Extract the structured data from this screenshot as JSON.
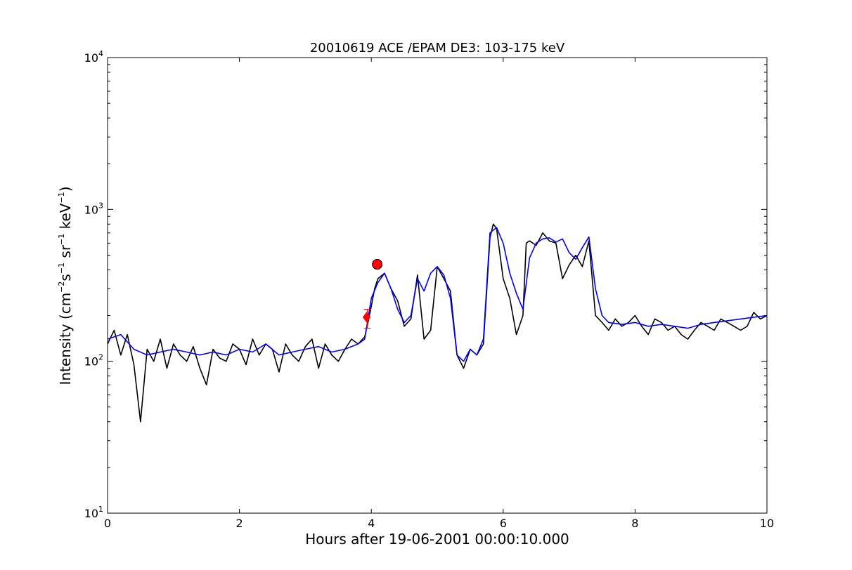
{
  "chart_data": {
    "type": "line",
    "title": "20010619 ACE /EPAM DE3: 103-175 keV",
    "xlabel": "Hours after 19-06-2001 00:00:10.000",
    "ylabel": {
      "prefix": "Intensity (cm",
      "sup1": "−2",
      "s": "s",
      "sup2": "−1",
      "sr": " sr",
      "sup3": "−1",
      "kev": " keV",
      "sup4": "−1",
      "suffix": ")"
    },
    "xlim": [
      0,
      10
    ],
    "ylim": [
      10,
      10000
    ],
    "yscale": "log",
    "x_ticks": [
      {
        "value": 0,
        "label": "0"
      },
      {
        "value": 2,
        "label": "2"
      },
      {
        "value": 4,
        "label": "4"
      },
      {
        "value": 6,
        "label": "6"
      },
      {
        "value": 8,
        "label": "8"
      },
      {
        "value": 10,
        "label": "10"
      }
    ],
    "y_ticks": [
      {
        "value": 10,
        "base": "10",
        "exp": "1"
      },
      {
        "value": 100,
        "base": "10",
        "exp": "2"
      },
      {
        "value": 1000,
        "base": "10",
        "exp": "3"
      },
      {
        "value": 10000,
        "base": "10",
        "exp": "4"
      }
    ],
    "grid": false,
    "series": [
      {
        "color": "#000000",
        "x": [
          0.0,
          0.1,
          0.2,
          0.3,
          0.4,
          0.5,
          0.6,
          0.7,
          0.8,
          0.9,
          1.0,
          1.1,
          1.2,
          1.3,
          1.4,
          1.5,
          1.6,
          1.7,
          1.8,
          1.9,
          2.0,
          2.1,
          2.2,
          2.3,
          2.4,
          2.5,
          2.6,
          2.7,
          2.8,
          2.9,
          3.0,
          3.1,
          3.2,
          3.3,
          3.4,
          3.5,
          3.6,
          3.7,
          3.8,
          3.9,
          3.95,
          4.0,
          4.05,
          4.1,
          4.2,
          4.3,
          4.4,
          4.5,
          4.6,
          4.7,
          4.8,
          4.9,
          5.0,
          5.1,
          5.2,
          5.3,
          5.4,
          5.5,
          5.6,
          5.7,
          5.8,
          5.85,
          5.9,
          6.0,
          6.1,
          6.2,
          6.3,
          6.35,
          6.4,
          6.5,
          6.6,
          6.7,
          6.8,
          6.9,
          7.0,
          7.1,
          7.2,
          7.3,
          7.4,
          7.5,
          7.6,
          7.7,
          7.8,
          7.9,
          8.0,
          8.1,
          8.2,
          8.3,
          8.4,
          8.5,
          8.6,
          8.7,
          8.8,
          8.9,
          9.0,
          9.1,
          9.2,
          9.3,
          9.4,
          9.5,
          9.6,
          9.7,
          9.8,
          9.9,
          10.0
        ],
        "y": [
          130,
          160,
          110,
          150,
          95,
          40,
          120,
          100,
          140,
          90,
          130,
          110,
          100,
          125,
          90,
          70,
          120,
          105,
          100,
          130,
          120,
          95,
          140,
          110,
          130,
          120,
          85,
          130,
          110,
          100,
          125,
          140,
          90,
          130,
          110,
          100,
          120,
          140,
          130,
          145,
          180,
          230,
          300,
          350,
          380,
          300,
          250,
          170,
          190,
          370,
          140,
          160,
          420,
          350,
          290,
          110,
          90,
          120,
          110,
          130,
          650,
          800,
          750,
          350,
          260,
          150,
          200,
          600,
          620,
          580,
          700,
          620,
          600,
          350,
          430,
          500,
          420,
          620,
          200,
          180,
          160,
          190,
          170,
          180,
          200,
          170,
          150,
          190,
          180,
          160,
          170,
          150,
          140,
          160,
          180,
          170,
          160,
          190,
          180,
          170,
          160,
          170,
          210,
          190,
          200
        ]
      },
      {
        "color": "#0000ff",
        "x": [
          0.0,
          0.2,
          0.4,
          0.6,
          0.8,
          1.0,
          1.2,
          1.4,
          1.6,
          1.8,
          2.0,
          2.2,
          2.4,
          2.6,
          2.8,
          3.0,
          3.2,
          3.4,
          3.6,
          3.8,
          3.9,
          4.0,
          4.1,
          4.2,
          4.3,
          4.4,
          4.5,
          4.6,
          4.7,
          4.8,
          4.9,
          5.0,
          5.1,
          5.2,
          5.3,
          5.4,
          5.5,
          5.6,
          5.7,
          5.8,
          5.9,
          6.0,
          6.1,
          6.2,
          6.3,
          6.4,
          6.5,
          6.6,
          6.7,
          6.8,
          6.9,
          7.0,
          7.1,
          7.2,
          7.3,
          7.4,
          7.5,
          7.6,
          7.8,
          8.0,
          8.2,
          8.4,
          8.6,
          8.8,
          9.0,
          9.2,
          9.4,
          9.6,
          9.8,
          10.0
        ],
        "y": [
          140,
          150,
          120,
          110,
          115,
          120,
          115,
          110,
          115,
          110,
          120,
          115,
          130,
          110,
          115,
          120,
          125,
          115,
          120,
          130,
          140,
          260,
          330,
          380,
          300,
          220,
          180,
          200,
          350,
          290,
          380,
          420,
          370,
          260,
          110,
          100,
          120,
          110,
          140,
          700,
          760,
          600,
          380,
          280,
          220,
          480,
          600,
          640,
          650,
          610,
          640,
          520,
          470,
          560,
          660,
          300,
          200,
          180,
          175,
          180,
          170,
          175,
          170,
          165,
          175,
          180,
          185,
          190,
          195,
          200
        ]
      }
    ],
    "markers": [
      {
        "shape": "circle",
        "x": 4.09,
        "y": 435,
        "color": "#ff0000"
      },
      {
        "shape": "diamond",
        "x": 3.93,
        "y": 195,
        "color": "#ff0000"
      },
      {
        "shape": "error-bar",
        "x": 3.94,
        "y": 195,
        "y_low": 165,
        "y_high": 220,
        "color": "#ff0000"
      }
    ]
  }
}
